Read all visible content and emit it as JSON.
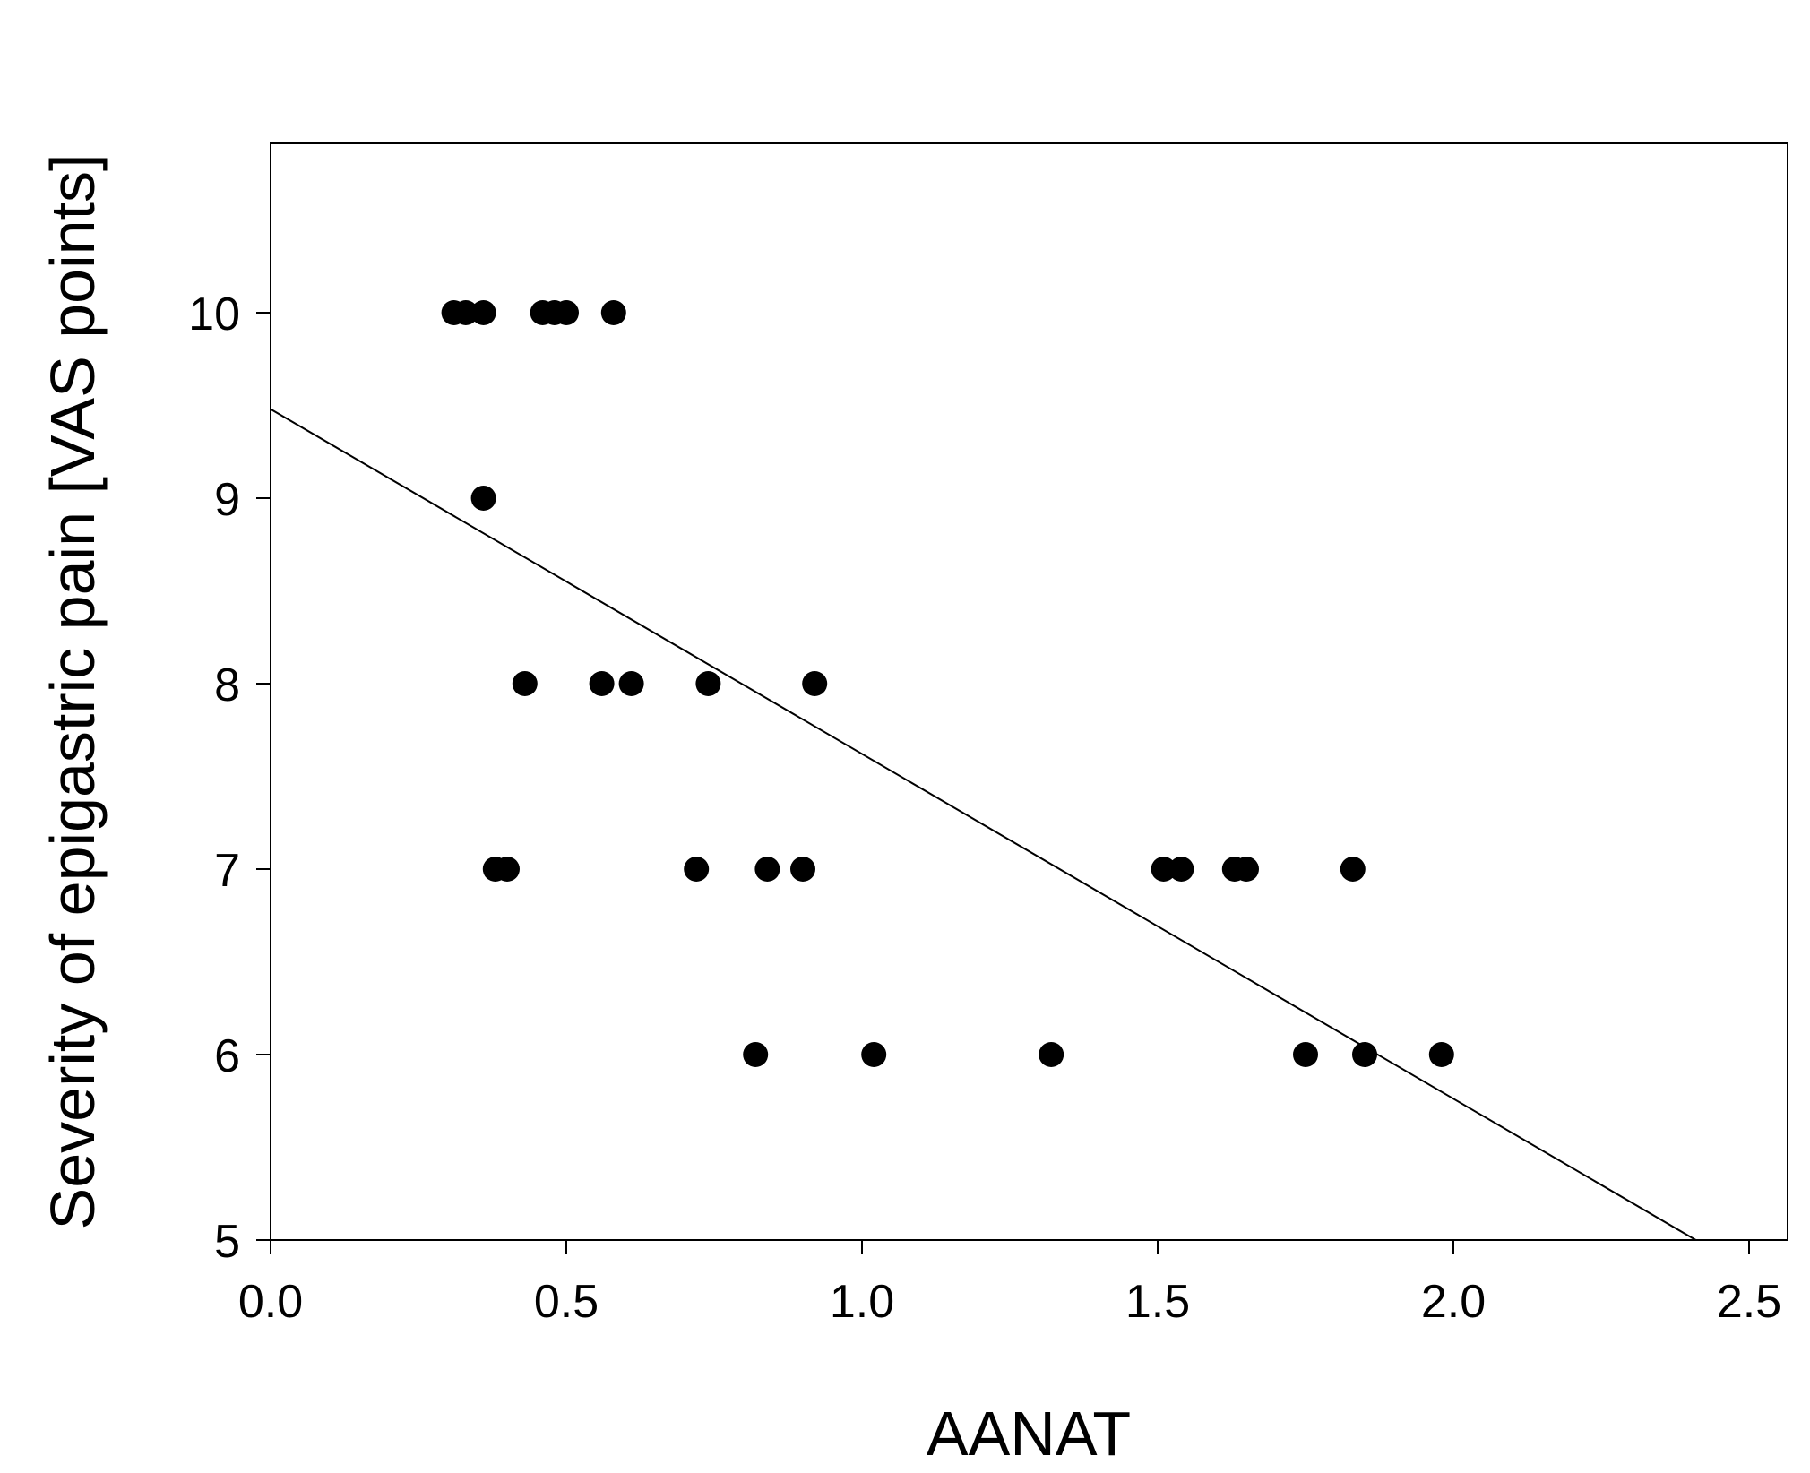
{
  "chart_data": {
    "type": "scatter",
    "title": "",
    "xlabel": "AANAT",
    "ylabel": "Severity of epigastric pain [VAS points]",
    "xlim": [
      0.0,
      2.6
    ],
    "ylim": [
      5,
      10.9
    ],
    "xticks": [
      0.0,
      0.5,
      1.0,
      1.5,
      2.0,
      2.5
    ],
    "xtick_labels": [
      "0.0",
      "0.5",
      "1.0",
      "1.5",
      "2.0",
      "2.5"
    ],
    "yticks": [
      5,
      6,
      7,
      8,
      9,
      10
    ],
    "ytick_labels": [
      "5",
      "6",
      "7",
      "8",
      "9",
      "10"
    ],
    "grid": false,
    "legend": "none",
    "series": [
      {
        "x": [
          0.31,
          0.33,
          0.36,
          0.46,
          0.48,
          0.5,
          0.58,
          0.36,
          0.43,
          0.56,
          0.61,
          0.74,
          0.92,
          0.38,
          0.4,
          0.72,
          0.84,
          0.9,
          1.51,
          1.54,
          1.63,
          1.65,
          1.83,
          0.82,
          1.02,
          1.32,
          1.75,
          1.85,
          1.98
        ],
        "y": [
          10,
          10,
          10,
          10,
          10,
          10,
          10,
          9,
          8,
          8,
          8,
          8,
          8,
          7,
          7,
          7,
          7,
          7,
          7,
          7,
          7,
          7,
          7,
          6,
          6,
          6,
          6,
          6,
          6
        ]
      }
    ],
    "regression_line": {
      "x": [
        0.0,
        2.41
      ],
      "y": [
        9.48,
        5.0
      ]
    },
    "colors": {
      "points": "#000000",
      "line": "#000000",
      "axes": "#000000"
    }
  }
}
